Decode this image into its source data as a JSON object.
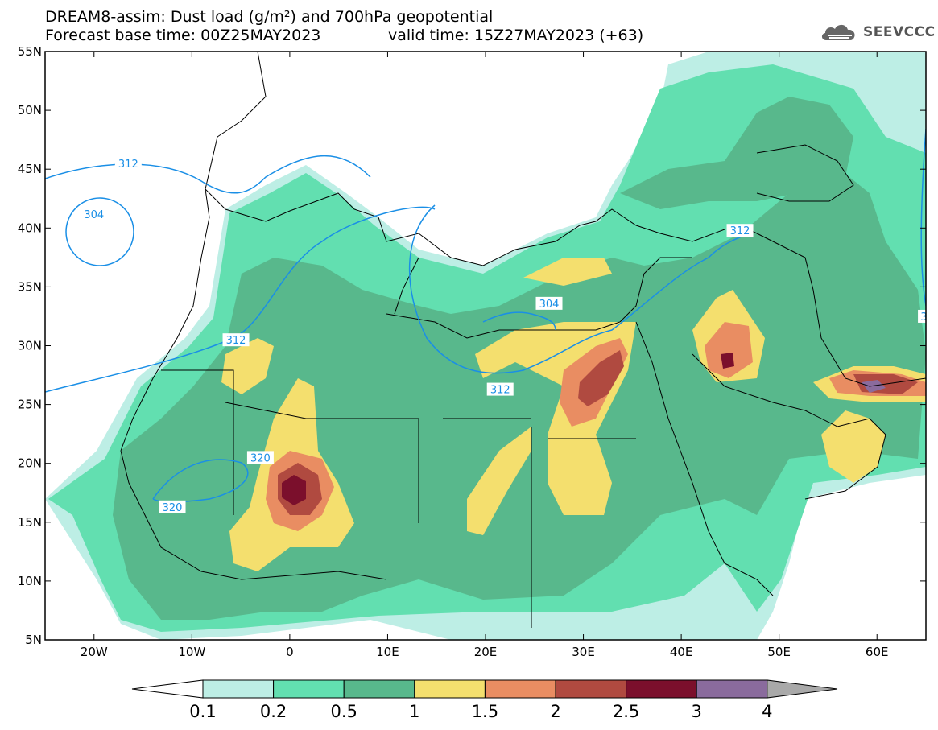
{
  "header": {
    "title_line1": "DREAM8-assim: Dust load (g/m²) and 700hPa geopotential",
    "title_line2_left": "Forecast base time: 00Z25MAY2023",
    "title_line2_right": "valid time: 15Z27MAY2023 (+63)"
  },
  "logo": {
    "name": "cloud-logo-icon",
    "text": "SEEVCCC"
  },
  "map": {
    "lat_labels": [
      "55N",
      "50N",
      "45N",
      "40N",
      "35N",
      "30N",
      "25N",
      "20N",
      "15N",
      "10N",
      "5N"
    ],
    "lon_labels": [
      "20W",
      "10W",
      "0",
      "10E",
      "20E",
      "30E",
      "40E",
      "50E",
      "60E"
    ],
    "lat_range": [
      5,
      55
    ],
    "lon_range": [
      -25,
      65
    ],
    "contour_labels": [
      {
        "text": "312",
        "lon": -16.5,
        "lat": 45.5
      },
      {
        "text": "304",
        "lon": -20,
        "lat": 41.2
      },
      {
        "text": "312",
        "lon": -5.5,
        "lat": 30.5
      },
      {
        "text": "304",
        "lon": 26.5,
        "lat": 33.6
      },
      {
        "text": "312",
        "lon": 21.5,
        "lat": 26.3
      },
      {
        "text": "312",
        "lon": 46,
        "lat": 39.8
      },
      {
        "text": "320",
        "lon": -3,
        "lat": 20.5
      },
      {
        "text": "320",
        "lon": -12,
        "lat": 16.3
      },
      {
        "text": "3",
        "lon": 64.8,
        "lat": 32.5
      }
    ]
  },
  "colorbar": {
    "levels": [
      "0.1",
      "0.2",
      "0.5",
      "1",
      "1.5",
      "2",
      "2.5",
      "3",
      "4"
    ],
    "colors": [
      "#ffffff",
      "#bdeee5",
      "#62dfb0",
      "#58b88c",
      "#f4df6e",
      "#e98d62",
      "#b04a40",
      "#7b0f2c",
      "#8a6b9d",
      "#a9a9a9"
    ]
  }
}
